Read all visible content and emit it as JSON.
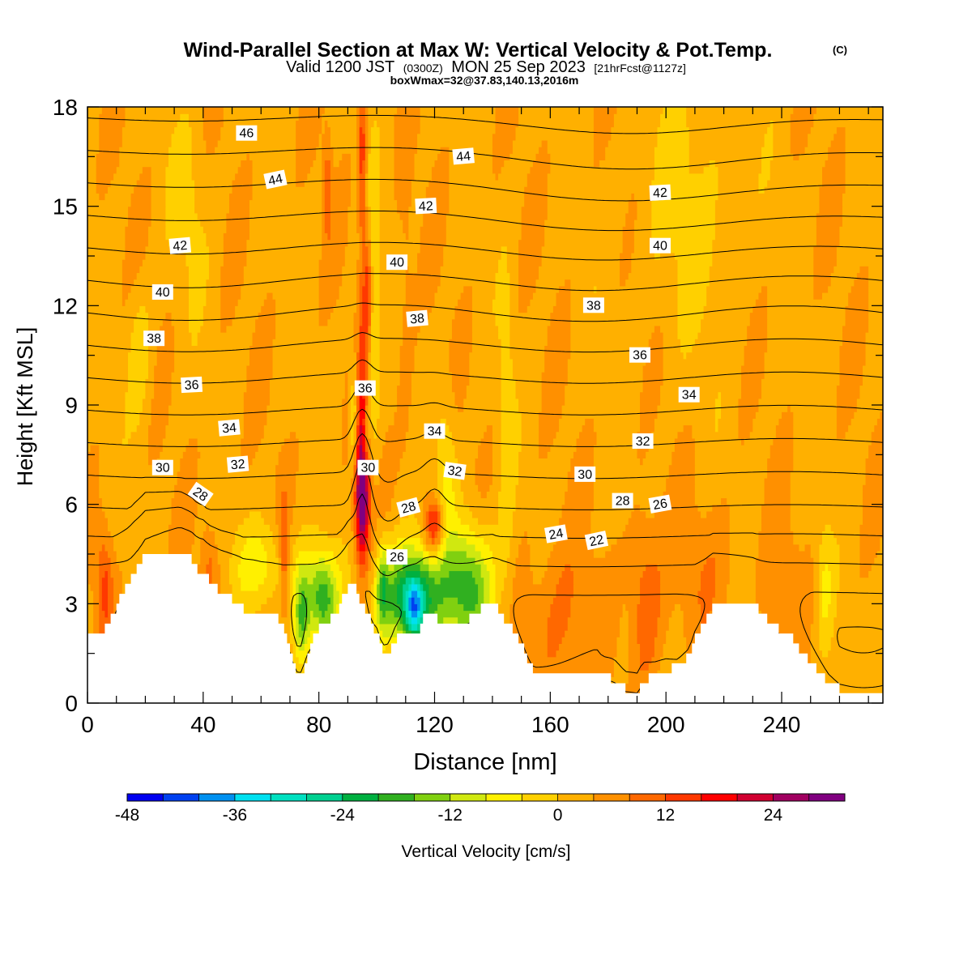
{
  "chart_data": {
    "type": "heatmap",
    "title": "Wind-Parallel Section at Max W: Vertical Velocity & Pot.Temp.",
    "title_mark": "(C)",
    "subtitle_main_a": "Valid 1200 JST",
    "subtitle_zulu": "(0300Z)",
    "subtitle_main_b": "MON 25 Sep 2023",
    "subtitle_fcst": "[21hrFcst@1127z]",
    "subtitle2": "boxWmax=32@37.83,140.13,2016m",
    "xlabel": "Distance [nm]",
    "ylabel": "Height [Kft MSL]",
    "xlim": [
      0,
      275
    ],
    "ylim": [
      0,
      18
    ],
    "x_ticks": [
      "0",
      "40",
      "80",
      "120",
      "160",
      "200",
      "240"
    ],
    "x_tick_values": [
      0,
      40,
      80,
      120,
      160,
      200,
      240
    ],
    "y_ticks": [
      "0",
      "3",
      "6",
      "9",
      "12",
      "15",
      "18"
    ],
    "y_tick_values": [
      0,
      3,
      6,
      9,
      12,
      15,
      18
    ],
    "colorbar": {
      "label": "Vertical Velocity [cm/s]",
      "min": -48,
      "max": 30,
      "step": 4,
      "tick_labels": [
        "-48",
        "-36",
        "-24",
        "-12",
        "0",
        "12",
        "24"
      ],
      "tick_values": [
        -48,
        -36,
        -24,
        -12,
        0,
        12,
        24
      ],
      "colors": [
        "#0000f0",
        "#0040f0",
        "#0090f0",
        "#00e0f0",
        "#00e0c0",
        "#00d090",
        "#00b040",
        "#30b020",
        "#80d010",
        "#d0e810",
        "#fff000",
        "#ffd000",
        "#ffb000",
        "#ff9000",
        "#ff6800",
        "#ff3800",
        "#ff0000",
        "#d00030",
        "#a00060",
        "#800080"
      ]
    },
    "terrain_kft": [
      [
        0,
        2.0
      ],
      [
        4,
        2.0
      ],
      [
        6,
        2.3
      ],
      [
        8,
        2.6
      ],
      [
        10,
        3.0
      ],
      [
        12,
        3.3
      ],
      [
        14,
        3.6
      ],
      [
        16,
        4.0
      ],
      [
        18,
        4.3
      ],
      [
        20,
        4.6
      ],
      [
        32,
        4.6
      ],
      [
        36,
        4.3
      ],
      [
        38,
        4.0
      ],
      [
        40,
        3.9
      ],
      [
        42,
        3.6
      ],
      [
        46,
        3.3
      ],
      [
        50,
        3.1
      ],
      [
        52,
        3.0
      ],
      [
        54,
        2.8
      ],
      [
        58,
        2.8
      ],
      [
        60,
        2.7
      ],
      [
        64,
        2.7
      ],
      [
        66,
        2.5
      ],
      [
        68,
        2.0
      ],
      [
        70,
        1.6
      ],
      [
        72,
        1.0
      ],
      [
        74,
        1.0
      ],
      [
        76,
        1.6
      ],
      [
        80,
        2.3
      ],
      [
        84,
        2.6
      ],
      [
        86,
        2.8
      ],
      [
        88,
        3.2
      ],
      [
        90,
        3.6
      ],
      [
        92,
        3.6
      ],
      [
        94,
        3.0
      ],
      [
        96,
        2.8
      ],
      [
        98,
        2.3
      ],
      [
        100,
        2.1
      ],
      [
        102,
        1.6
      ],
      [
        104,
        1.6
      ],
      [
        106,
        1.9
      ],
      [
        108,
        2.0
      ],
      [
        114,
        2.0
      ],
      [
        116,
        2.6
      ],
      [
        120,
        2.6
      ],
      [
        122,
        2.3
      ],
      [
        128,
        2.3
      ],
      [
        132,
        2.6
      ],
      [
        136,
        2.9
      ],
      [
        140,
        3.0
      ],
      [
        142,
        2.8
      ],
      [
        144,
        2.5
      ],
      [
        146,
        2.3
      ],
      [
        148,
        2.0
      ],
      [
        150,
        1.7
      ],
      [
        152,
        1.3
      ],
      [
        154,
        1.0
      ],
      [
        176,
        1.0
      ],
      [
        178,
        0.8
      ],
      [
        182,
        0.7
      ],
      [
        186,
        0.4
      ],
      [
        190,
        0.4
      ],
      [
        192,
        0.7
      ],
      [
        196,
        0.8
      ],
      [
        200,
        1.0
      ],
      [
        204,
        1.1
      ],
      [
        206,
        1.3
      ],
      [
        208,
        1.5
      ],
      [
        210,
        2.0
      ],
      [
        212,
        2.3
      ],
      [
        214,
        2.6
      ],
      [
        216,
        3.0
      ],
      [
        230,
        3.0
      ],
      [
        232,
        2.8
      ],
      [
        234,
        2.6
      ],
      [
        236,
        2.4
      ],
      [
        238,
        2.3
      ],
      [
        240,
        2.1
      ],
      [
        244,
        1.9
      ],
      [
        246,
        1.6
      ],
      [
        248,
        1.4
      ],
      [
        250,
        1.2
      ],
      [
        252,
        1.0
      ],
      [
        254,
        0.8
      ],
      [
        256,
        0.6
      ],
      [
        258,
        0.5
      ],
      [
        260,
        0.4
      ],
      [
        275,
        0.4
      ]
    ],
    "w_features": [
      {
        "x": 95,
        "z": 6.4,
        "sx": 1.8,
        "sz": 1.4,
        "w": 30
      },
      {
        "x": 95,
        "z": 9.5,
        "sx": 1.0,
        "sz": 2.5,
        "w": 10
      },
      {
        "x": 95,
        "z": 16.5,
        "sx": 1.0,
        "sz": 1.8,
        "w": 12
      },
      {
        "x": 97,
        "z": 12.5,
        "sx": 1.0,
        "sz": 1.2,
        "w": 12
      },
      {
        "x": 92,
        "z": 8.5,
        "sx": 1.0,
        "sz": 1.2,
        "w": -10
      },
      {
        "x": 99,
        "z": 11.5,
        "sx": 1.4,
        "sz": 3.0,
        "w": -8
      },
      {
        "x": 96,
        "z": 7.8,
        "sx": 1.0,
        "sz": 0.7,
        "w": -10
      },
      {
        "x": 112,
        "z": 3.2,
        "sx": 7,
        "sz": 1.1,
        "w": -30
      },
      {
        "x": 113,
        "z": 2.8,
        "sx": 2,
        "sz": 0.6,
        "w": -18
      },
      {
        "x": 102,
        "z": 3.5,
        "sx": 1.5,
        "sz": 0.9,
        "w": -14
      },
      {
        "x": 81,
        "z": 3.2,
        "sx": 4,
        "sz": 1.0,
        "w": -22
      },
      {
        "x": 74,
        "z": 2.5,
        "sx": 2,
        "sz": 1.2,
        "w": -18
      },
      {
        "x": 132,
        "z": 3.5,
        "sx": 6,
        "sz": 1.3,
        "w": -22
      },
      {
        "x": 120,
        "z": 5.3,
        "sx": 2.5,
        "sz": 0.6,
        "w": 18
      },
      {
        "x": 124,
        "z": 6.8,
        "sx": 2.5,
        "sz": 1.8,
        "w": -8
      },
      {
        "x": 145,
        "z": 8.0,
        "sx": 2,
        "sz": 3.5,
        "w": -5
      },
      {
        "x": 60,
        "z": 4.2,
        "sx": 7,
        "sz": 0.9,
        "w": -9
      },
      {
        "x": 68,
        "z": 4.5,
        "sx": 1.2,
        "sz": 1.2,
        "w": 10
      },
      {
        "x": 6,
        "z": 3.5,
        "sx": 2,
        "sz": 1.2,
        "w": 10
      },
      {
        "x": 42,
        "z": 4.0,
        "sx": 2,
        "sz": 1.0,
        "w": 6
      },
      {
        "x": 18,
        "z": 10.5,
        "sx": 3,
        "sz": 1.5,
        "w": -6
      },
      {
        "x": 35,
        "z": 15,
        "sx": 5,
        "sz": 2,
        "w": -4
      },
      {
        "x": 208,
        "z": 15,
        "sx": 14,
        "sz": 3,
        "w": -4
      },
      {
        "x": 255,
        "z": 3.5,
        "sx": 2,
        "sz": 1.4,
        "w": -7
      },
      {
        "x": 162,
        "z": 2.4,
        "sx": 9,
        "sz": 1.8,
        "w": 6
      },
      {
        "x": 193,
        "z": 3.0,
        "sx": 4,
        "sz": 1.8,
        "w": 9
      },
      {
        "x": 215,
        "z": 4.0,
        "sx": 8,
        "sz": 1.5,
        "w": 4
      },
      {
        "x": 240,
        "z": 3.2,
        "sx": 4,
        "sz": 1.5,
        "w": 4
      },
      {
        "x": 83,
        "z": 15.5,
        "sx": 1.0,
        "sz": 1.0,
        "w": 8
      },
      {
        "x": 110,
        "z": 12,
        "sx": 2,
        "sz": 4,
        "w": 3
      }
    ],
    "theta_levels": [
      22,
      23,
      24,
      25,
      26,
      27,
      28,
      29,
      30,
      31,
      32,
      33,
      34,
      35,
      36,
      37,
      38,
      39,
      40,
      41,
      42,
      43,
      44,
      45,
      46
    ],
    "contour_labels": [
      {
        "x": 55,
        "z": 17.2,
        "text": "46",
        "angle": 0
      },
      {
        "x": 65,
        "z": 15.8,
        "text": "44",
        "angle": -12
      },
      {
        "x": 130,
        "z": 16.5,
        "text": "44",
        "angle": -5
      },
      {
        "x": 117,
        "z": 15.0,
        "text": "42",
        "angle": -3
      },
      {
        "x": 198,
        "z": 15.4,
        "text": "42",
        "angle": -3
      },
      {
        "x": 32,
        "z": 13.8,
        "text": "42",
        "angle": -5
      },
      {
        "x": 107,
        "z": 13.3,
        "text": "40",
        "angle": 0
      },
      {
        "x": 198,
        "z": 13.8,
        "text": "40",
        "angle": 0
      },
      {
        "x": 26,
        "z": 12.4,
        "text": "40",
        "angle": 0
      },
      {
        "x": 114,
        "z": 11.6,
        "text": "38",
        "angle": -5
      },
      {
        "x": 175,
        "z": 12.0,
        "text": "38",
        "angle": 0
      },
      {
        "x": 23,
        "z": 11.0,
        "text": "38",
        "angle": 0
      },
      {
        "x": 96,
        "z": 9.5,
        "text": "36",
        "angle": 0
      },
      {
        "x": 191,
        "z": 10.5,
        "text": "36",
        "angle": 0
      },
      {
        "x": 36,
        "z": 9.6,
        "text": "36",
        "angle": -3
      },
      {
        "x": 120,
        "z": 8.2,
        "text": "34",
        "angle": 0
      },
      {
        "x": 208,
        "z": 9.3,
        "text": "34",
        "angle": 0
      },
      {
        "x": 49,
        "z": 8.3,
        "text": "34",
        "angle": -5
      },
      {
        "x": 52,
        "z": 7.2,
        "text": "32",
        "angle": -5
      },
      {
        "x": 127,
        "z": 7.0,
        "text": "32",
        "angle": 8
      },
      {
        "x": 192,
        "z": 7.9,
        "text": "32",
        "angle": 0
      },
      {
        "x": 26,
        "z": 7.1,
        "text": "30",
        "angle": 0
      },
      {
        "x": 97,
        "z": 7.1,
        "text": "30",
        "angle": 0
      },
      {
        "x": 172,
        "z": 6.9,
        "text": "30",
        "angle": 0
      },
      {
        "x": 39,
        "z": 6.3,
        "text": "28",
        "angle": 35
      },
      {
        "x": 111,
        "z": 5.9,
        "text": "28",
        "angle": -15
      },
      {
        "x": 185,
        "z": 6.1,
        "text": "28",
        "angle": 0
      },
      {
        "x": 198,
        "z": 6.0,
        "text": "26",
        "angle": -10
      },
      {
        "x": 107,
        "z": 4.4,
        "text": "26",
        "angle": 0
      },
      {
        "x": 162,
        "z": 5.1,
        "text": "24",
        "angle": -10
      },
      {
        "x": 176,
        "z": 4.9,
        "text": "22",
        "angle": -12
      }
    ]
  }
}
